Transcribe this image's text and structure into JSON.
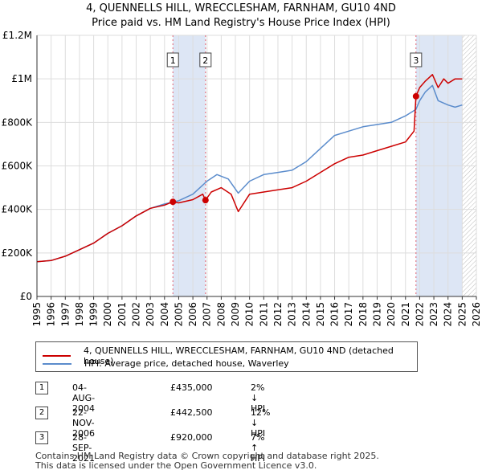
{
  "title": {
    "line1": "4, QUENNELLS HILL, WRECCLESHAM, FARNHAM, GU10 4ND",
    "line2": "Price paid vs. HM Land Registry's House Price Index (HPI)"
  },
  "chart_data": {
    "type": "line",
    "ylim": [
      0,
      1200000
    ],
    "xlim": [
      1995,
      2026
    ],
    "ytick_values": [
      0,
      200000,
      400000,
      600000,
      800000,
      1000000,
      1200000
    ],
    "ytick_labels": [
      "£0",
      "£200K",
      "£400K",
      "£600K",
      "£800K",
      "£1M",
      "£1.2M"
    ],
    "xtick_labels": [
      "1995",
      "1996",
      "1997",
      "1998",
      "1999",
      "2000",
      "2001",
      "2002",
      "2003",
      "2004",
      "2005",
      "2006",
      "2007",
      "2008",
      "2009",
      "2010",
      "2011",
      "2012",
      "2013",
      "2014",
      "2015",
      "2016",
      "2017",
      "2018",
      "2019",
      "2020",
      "2021",
      "2022",
      "2023",
      "2024",
      "2025",
      "2026"
    ],
    "grid": true,
    "colors": {
      "property": "#cc0000",
      "hpi": "#5b8ccc",
      "shade": "#dde6f5",
      "marker_line": "#e06070",
      "hatch": "#bbbbbb"
    },
    "series": [
      {
        "name": "4, QUENNELLS HILL, WRECCLESHAM, FARNHAM, GU10 4ND (detached house)",
        "x": [
          1995.0,
          1996.0,
          1997.0,
          1998.0,
          1999.0,
          2000.0,
          2001.0,
          2002.0,
          2003.0,
          2004.0,
          2004.59,
          2005.0,
          2006.0,
          2006.7,
          2006.89,
          2007.3,
          2008.0,
          2008.7,
          2009.2,
          2010.0,
          2011.0,
          2012.0,
          2013.0,
          2014.0,
          2015.0,
          2016.0,
          2017.0,
          2018.0,
          2019.0,
          2020.0,
          2021.0,
          2021.6,
          2021.74,
          2022.0,
          2022.4,
          2022.9,
          2023.3,
          2023.7,
          2024.0,
          2024.5,
          2025.0
        ],
        "values": [
          160000,
          165000,
          185000,
          215000,
          245000,
          290000,
          325000,
          370000,
          405000,
          420000,
          435000,
          430000,
          445000,
          470000,
          442500,
          480000,
          500000,
          470000,
          390000,
          470000,
          480000,
          490000,
          500000,
          530000,
          570000,
          610000,
          640000,
          650000,
          670000,
          690000,
          710000,
          760000,
          920000,
          960000,
          990000,
          1020000,
          960000,
          1000000,
          980000,
          1000000,
          1000000
        ]
      },
      {
        "name": "HPI: Average price, detached house, Waverley",
        "x": [
          1995.0,
          1996.0,
          1997.0,
          1998.0,
          1999.0,
          2000.0,
          2001.0,
          2002.0,
          2003.0,
          2004.0,
          2005.0,
          2006.0,
          2007.0,
          2007.7,
          2008.5,
          2009.2,
          2010.0,
          2011.0,
          2012.0,
          2013.0,
          2014.0,
          2015.0,
          2016.0,
          2017.0,
          2018.0,
          2019.0,
          2020.0,
          2021.0,
          2021.74,
          2022.0,
          2022.4,
          2022.9,
          2023.3,
          2024.0,
          2024.5,
          2025.0
        ],
        "values": [
          160000,
          165000,
          185000,
          215000,
          245000,
          290000,
          325000,
          370000,
          405000,
          425000,
          440000,
          470000,
          530000,
          560000,
          540000,
          475000,
          530000,
          560000,
          570000,
          580000,
          620000,
          680000,
          740000,
          760000,
          780000,
          790000,
          800000,
          830000,
          860000,
          900000,
          940000,
          970000,
          900000,
          880000,
          870000,
          880000
        ]
      }
    ],
    "sales": [
      {
        "label": "1",
        "x": 2004.59,
        "value": 435000
      },
      {
        "label": "2",
        "x": 2006.89,
        "value": 442500
      },
      {
        "label": "3",
        "x": 2021.74,
        "value": 920000
      }
    ],
    "shaded_spans": [
      [
        2004.59,
        2006.89
      ],
      [
        2021.74,
        2025.0
      ]
    ],
    "hatch_from": 2025.0
  },
  "legend": {
    "property_label": "4, QUENNELLS HILL, WRECCLESHAM, FARNHAM, GU10 4ND (detached house)",
    "hpi_label": "HPI: Average price, detached house, Waverley"
  },
  "transactions": [
    {
      "num": "1",
      "date": "04-AUG-2004",
      "price": "£435,000",
      "hpi": "2% ↓ HPI"
    },
    {
      "num": "2",
      "date": "22-NOV-2006",
      "price": "£442,500",
      "hpi": "12% ↓ HPI"
    },
    {
      "num": "3",
      "date": "28-SEP-2021",
      "price": "£920,000",
      "hpi": "7% ↑ HPI"
    }
  ],
  "footer": {
    "line1": "Contains HM Land Registry data © Crown copyright and database right 2025.",
    "line2": "This data is licensed under the Open Government Licence v3.0."
  }
}
